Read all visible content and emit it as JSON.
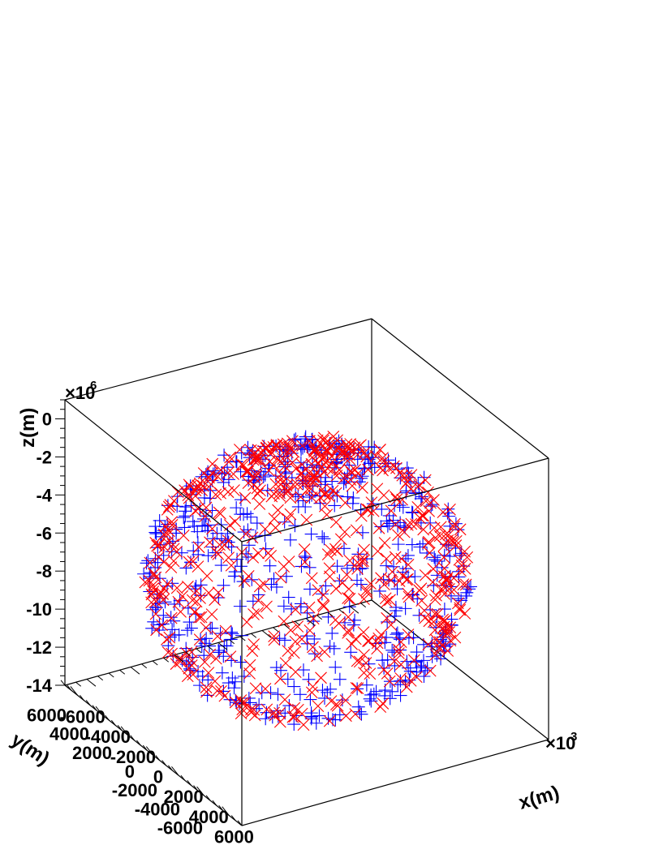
{
  "chart_data": {
    "type": "scatter",
    "title": "",
    "x_axis": {
      "label": "x(m)",
      "range": [
        -7000,
        7000
      ],
      "ticks": [
        -6000,
        -4000,
        -2000,
        0,
        2000,
        4000,
        6000
      ],
      "tick_labels": [
        "-6000",
        "-4000",
        "-2000",
        "0",
        "2000",
        "4000",
        "6000"
      ],
      "multiplier_base": "×10",
      "multiplier_exp": "3"
    },
    "y_axis": {
      "label": "y(m)",
      "range": [
        -7000,
        7000
      ],
      "ticks": [
        -6000,
        -4000,
        -2000,
        0,
        2000,
        4000,
        6000
      ],
      "tick_labels": [
        "-6000",
        "-4000",
        "-2000",
        "0",
        "2000",
        "4000",
        "6000"
      ]
    },
    "z_axis": {
      "label": "z(m)",
      "range": [
        -14,
        1
      ],
      "ticks": [
        -14,
        -12,
        -10,
        -8,
        -6,
        -4,
        -2,
        0
      ],
      "tick_labels": [
        "-14",
        "-12",
        "-10",
        "-8",
        "-6",
        "-4",
        "-2",
        "0"
      ],
      "multiplier_base": "×10",
      "multiplier_exp": "6"
    },
    "series": [
      {
        "marker": "plus",
        "color": "#0000ff",
        "count": 600
      },
      {
        "marker": "cross",
        "color": "#ff0000",
        "count": 600
      }
    ],
    "distribution": {
      "shape": "spherical shell",
      "center": [
        0,
        0,
        -7
      ],
      "radius_xy": 6500,
      "radius_z": 6.5
    }
  }
}
